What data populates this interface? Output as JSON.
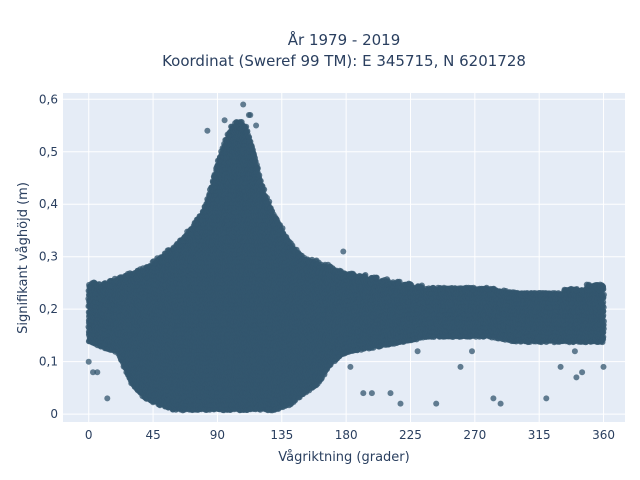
{
  "chart_data": {
    "type": "scatter",
    "title_line1": "År 1979 - 2019",
    "title_line2": "Koordinat (Sweref 99 TM): E 345715, N 6201728",
    "xlabel": "Vågriktning (grader)",
    "ylabel": "Signifikant våghöjd (m)",
    "xlim": [
      -18,
      375
    ],
    "ylim": [
      -0.015,
      0.612
    ],
    "x_ticks": [
      0,
      45,
      90,
      135,
      180,
      225,
      270,
      315,
      360
    ],
    "x_tick_labels": [
      "0",
      "45",
      "90",
      "135",
      "180",
      "225",
      "270",
      "315",
      "360"
    ],
    "y_ticks": [
      0,
      0.1,
      0.2,
      0.3,
      0.4,
      0.5,
      0.6
    ],
    "y_tick_labels": [
      "0",
      "0,1",
      "0,2",
      "0,3",
      "0,4",
      "0,5",
      "0,6"
    ],
    "grid": true,
    "legend": "none",
    "marker_color": "#33566e",
    "background_color": "#e5ecf6",
    "envelope": {
      "x": [
        0,
        10,
        20,
        30,
        40,
        50,
        60,
        70,
        80,
        85,
        90,
        95,
        100,
        105,
        110,
        115,
        120,
        125,
        130,
        140,
        150,
        160,
        170,
        180,
        200,
        220,
        240,
        260,
        280,
        300,
        320,
        340,
        360
      ],
      "y_min": [
        0.14,
        0.13,
        0.12,
        0.06,
        0.03,
        0.02,
        0.01,
        0.01,
        0.01,
        0.01,
        0.01,
        0.01,
        0.01,
        0.01,
        0.01,
        0.01,
        0.01,
        0.01,
        0.01,
        0.02,
        0.04,
        0.06,
        0.1,
        0.12,
        0.13,
        0.14,
        0.15,
        0.15,
        0.15,
        0.14,
        0.14,
        0.14,
        0.14
      ],
      "y_max": [
        0.25,
        0.25,
        0.26,
        0.27,
        0.28,
        0.3,
        0.32,
        0.35,
        0.39,
        0.43,
        0.48,
        0.52,
        0.55,
        0.56,
        0.55,
        0.51,
        0.45,
        0.41,
        0.38,
        0.33,
        0.3,
        0.29,
        0.28,
        0.27,
        0.26,
        0.25,
        0.24,
        0.24,
        0.24,
        0.23,
        0.23,
        0.24,
        0.25
      ]
    },
    "outliers": {
      "x": [
        0,
        3,
        6,
        13,
        108,
        178,
        183,
        192,
        198,
        211,
        218,
        230,
        243,
        260,
        268,
        283,
        288,
        320,
        330,
        340,
        341,
        345,
        360,
        83,
        95,
        113,
        112,
        117
      ],
      "y": [
        0.1,
        0.08,
        0.08,
        0.03,
        0.59,
        0.31,
        0.09,
        0.04,
        0.04,
        0.04,
        0.02,
        0.12,
        0.02,
        0.09,
        0.12,
        0.03,
        0.02,
        0.03,
        0.09,
        0.12,
        0.07,
        0.08,
        0.09,
        0.54,
        0.56,
        0.57,
        0.57,
        0.55
      ]
    }
  }
}
